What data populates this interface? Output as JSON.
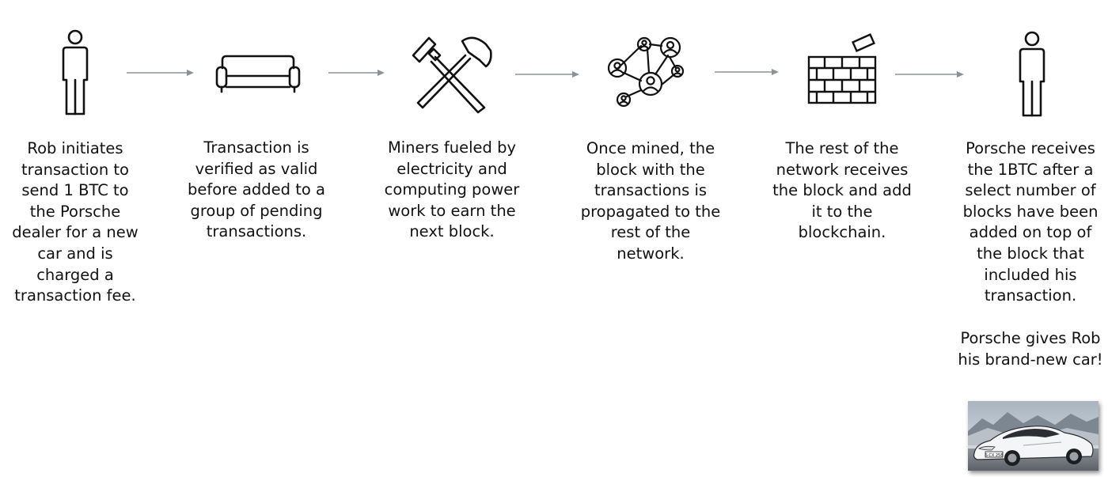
{
  "steps": [
    {
      "icon": "person-icon",
      "lines": [
        "Rob initiates",
        "transaction to",
        "send 1 BTC to",
        "the Porsche",
        "dealer for a new",
        "car and is",
        "charged a",
        "transaction fee."
      ]
    },
    {
      "icon": "sofa-icon",
      "lines": [
        "Transaction is",
        "verified as valid",
        "before added to a",
        "group of pending",
        "transactions."
      ]
    },
    {
      "icon": "hammers-icon",
      "lines": [
        "Miners fueled by",
        "electricity and",
        "computing power",
        "work to earn the",
        "next block."
      ]
    },
    {
      "icon": "network-icon",
      "lines": [
        "Once mined, the",
        "block with the",
        "transactions is",
        "propagated to the",
        "rest of the",
        "network."
      ]
    },
    {
      "icon": "brick-wall-icon",
      "lines": [
        "The rest of the",
        "network receives",
        "the block and add",
        "it to the",
        "blockchain."
      ]
    },
    {
      "icon": "person-icon",
      "lines": [
        "Porsche receives",
        "the 1BTC after a",
        "select number of",
        "blocks have been",
        "added on top of",
        "the block that",
        "included his",
        "transaction."
      ],
      "extra_lines": [
        "Porsche gives Rob",
        "his brand-new car!"
      ]
    }
  ],
  "plate_text": "S·CX 258",
  "colors": {
    "stroke": "#111111",
    "arrow": "#8a929a",
    "text": "#111111"
  }
}
